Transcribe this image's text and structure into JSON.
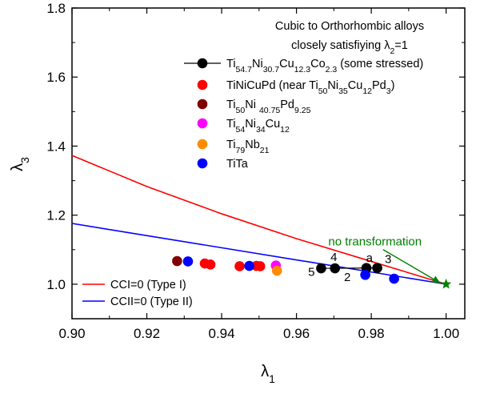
{
  "chart_data": {
    "type": "scatter",
    "title": "",
    "xlabel": {
      "sym": "λ",
      "sub": "1"
    },
    "ylabel": {
      "sym": "λ",
      "sub": "3"
    },
    "xlim": [
      0.9,
      1.005
    ],
    "ylim": [
      0.9,
      1.8
    ],
    "xticks": [
      "0.90",
      "0.92",
      "0.94",
      "0.96",
      "0.98",
      "1.00"
    ],
    "yticks": [
      "1.0",
      "1.2",
      "1.4",
      "1.6",
      "1.8"
    ],
    "legend_title": {
      "line1": "Cubic to Orthorhombic alloys",
      "line2_pre": "closely satisfiying ",
      "line2_sym": "λ",
      "line2_sub": "2",
      "line2_post": "=1"
    },
    "series": [
      {
        "name": "Ti54.7Ni30.7Cu12.3Co2.3 (some stressed)",
        "legend_parts": [
          [
            "Ti",
            ""
          ],
          [
            "54.7",
            "sub"
          ],
          [
            "Ni",
            ""
          ],
          [
            "30.7",
            "sub"
          ],
          [
            "Cu",
            ""
          ],
          [
            "12.3",
            "sub"
          ],
          [
            "Co",
            ""
          ],
          [
            "2.3",
            "sub"
          ],
          [
            " (some stressed)",
            ""
          ]
        ],
        "color": "#000000",
        "connected": true,
        "x": [
          0.9666,
          0.9703,
          0.9787,
          0.9816
        ],
        "y": [
          1.046,
          1.046,
          1.047,
          1.047
        ]
      },
      {
        "name": "TiNiCuPd (near Ti50Ni35Cu12Pd3)",
        "legend_parts": [
          [
            "TiNiCuPd (near Ti",
            ""
          ],
          [
            "50",
            "sub"
          ],
          [
            "Ni",
            ""
          ],
          [
            "35",
            "sub"
          ],
          [
            "Cu",
            ""
          ],
          [
            "12",
            "sub"
          ],
          [
            "Pd",
            ""
          ],
          [
            "3",
            "sub"
          ],
          [
            ")",
            ""
          ]
        ],
        "color": "#ff0000",
        "x": [
          0.9355,
          0.937,
          0.9448,
          0.9493,
          0.9503
        ],
        "y": [
          1.06,
          1.057,
          1.052,
          1.053,
          1.052
        ]
      },
      {
        "name": "Ti50Ni40.75Pd9.25",
        "legend_parts": [
          [
            "Ti",
            ""
          ],
          [
            "50",
            "sub"
          ],
          [
            "Ni ",
            ""
          ],
          [
            "40.75",
            "sub"
          ],
          [
            "Pd",
            ""
          ],
          [
            "9.25",
            "sub"
          ]
        ],
        "color": "#800000",
        "x": [
          0.9281
        ],
        "y": [
          1.067
        ]
      },
      {
        "name": "Ti54Ni34Cu12",
        "legend_parts": [
          [
            "Ti",
            ""
          ],
          [
            "54",
            "sub"
          ],
          [
            "Ni",
            ""
          ],
          [
            "34",
            "sub"
          ],
          [
            "Cu",
            ""
          ],
          [
            "12",
            "sub"
          ]
        ],
        "color": "#ff00ff",
        "x": [
          0.9545
        ],
        "y": [
          1.054
        ]
      },
      {
        "name": "Ti79Nb21",
        "legend_parts": [
          [
            "Ti",
            ""
          ],
          [
            "79",
            "sub"
          ],
          [
            "Nb",
            ""
          ],
          [
            "21",
            "sub"
          ]
        ],
        "color": "#ff8c00",
        "x": [
          0.9548
        ],
        "y": [
          1.039
        ]
      },
      {
        "name": "TiTa",
        "legend_parts": [
          [
            "TiTa",
            ""
          ]
        ],
        "color": "#0000ff",
        "x": [
          0.931,
          0.9474,
          0.9784,
          0.9861
        ],
        "y": [
          1.066,
          1.053,
          1.027,
          1.016
        ]
      }
    ],
    "curves": [
      {
        "name": "CCI=0 (Type I)",
        "color": "#ff0000",
        "x": [
          0.9,
          0.92,
          0.94,
          0.96,
          0.98,
          1.0
        ],
        "y": [
          1.373,
          1.283,
          1.204,
          1.132,
          1.066,
          1.0
        ]
      },
      {
        "name": "CCII=0 (Type II)",
        "color": "#0000ff",
        "x": [
          0.9,
          1.0
        ],
        "y": [
          1.176,
          1.0
        ]
      }
    ],
    "point_labels": [
      {
        "text": "4",
        "x": 0.97,
        "y": 1.067
      },
      {
        "text": "5",
        "x": 0.964,
        "y": 1.024
      },
      {
        "text": "2",
        "x": 0.9736,
        "y": 1.009
      },
      {
        "text": "a",
        "x": 0.9795,
        "y": 1.065
      },
      {
        "text": "3",
        "x": 0.9845,
        "y": 1.061
      }
    ],
    "star": {
      "x": 1.0,
      "y": 1.0,
      "color": "#008000"
    },
    "annotation": {
      "text": "no transformation",
      "color": "#008000",
      "x": 0.981,
      "y": 1.112,
      "arrow_to": [
        0.9985,
        1.003
      ]
    }
  }
}
